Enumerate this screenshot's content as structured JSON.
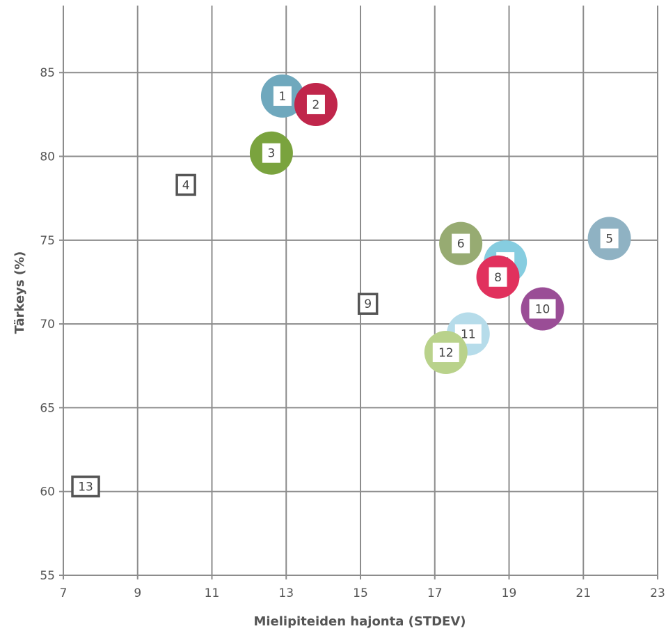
{
  "chart_data": {
    "type": "scatter",
    "title": "",
    "xlabel": "Mielipiteiden hajonta (STDEV)",
    "ylabel": "Tärkeys (%)",
    "xlim": [
      7,
      23
    ],
    "ylim": [
      55,
      89
    ],
    "xticks": [
      7,
      9,
      11,
      13,
      15,
      17,
      19,
      21,
      23
    ],
    "yticks": [
      55,
      60,
      65,
      70,
      75,
      80,
      85
    ],
    "grid": true,
    "legend": "none",
    "points": [
      {
        "label": "1",
        "x": 12.9,
        "y": 83.6,
        "marker": "circle",
        "color": "#6fa8bd"
      },
      {
        "label": "2",
        "x": 13.8,
        "y": 83.1,
        "marker": "circle",
        "color": "#c0264b"
      },
      {
        "label": "3",
        "x": 12.6,
        "y": 80.2,
        "marker": "circle",
        "color": "#7aa33e"
      },
      {
        "label": "4",
        "x": 10.3,
        "y": 78.3,
        "marker": "square",
        "color": "#555555"
      },
      {
        "label": "5",
        "x": 21.7,
        "y": 75.1,
        "marker": "circle",
        "color": "#8fb2c3"
      },
      {
        "label": "6",
        "x": 17.7,
        "y": 74.8,
        "marker": "circle",
        "color": "#97ab72"
      },
      {
        "label": "7",
        "x": 18.9,
        "y": 73.7,
        "marker": "circle",
        "color": "#86cde0"
      },
      {
        "label": "8",
        "x": 18.7,
        "y": 72.8,
        "marker": "circle",
        "color": "#e1315d"
      },
      {
        "label": "9",
        "x": 15.2,
        "y": 71.2,
        "marker": "square",
        "color": "#555555"
      },
      {
        "label": "10",
        "x": 19.9,
        "y": 70.9,
        "marker": "circle",
        "color": "#9a4d96"
      },
      {
        "label": "11",
        "x": 17.9,
        "y": 69.4,
        "marker": "circle",
        "color": "#b6dcea"
      },
      {
        "label": "12",
        "x": 17.3,
        "y": 68.3,
        "marker": "circle",
        "color": "#b9d28b"
      },
      {
        "label": "13",
        "x": 7.6,
        "y": 60.3,
        "marker": "square",
        "color": "#555555"
      }
    ]
  }
}
